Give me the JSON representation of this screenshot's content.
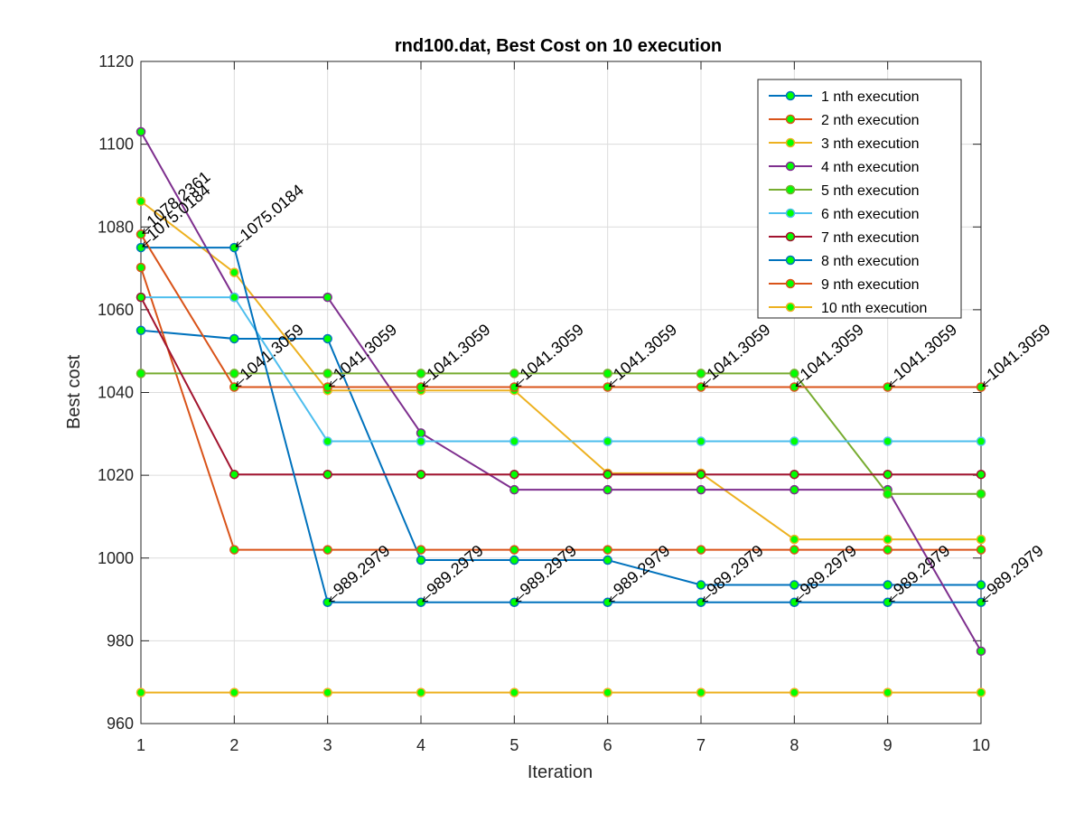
{
  "chart_data": {
    "type": "line",
    "title": "rnd100.dat, Best Cost on 10 execution",
    "xlabel": "Iteration",
    "ylabel": "Best cost",
    "xlim": [
      1,
      10
    ],
    "ylim": [
      960,
      1120
    ],
    "xticks": [
      1,
      2,
      3,
      4,
      5,
      6,
      7,
      8,
      9,
      10
    ],
    "yticks": [
      960,
      980,
      1000,
      1020,
      1040,
      1060,
      1080,
      1100,
      1120
    ],
    "grid": true,
    "legend_position": "top-right",
    "marker_fill": "#00ff00",
    "x": [
      1,
      2,
      3,
      4,
      5,
      6,
      7,
      8,
      9,
      10
    ],
    "series": [
      {
        "name": "1 nth execution",
        "color": "#0072BD",
        "values": [
          1055,
          1053,
          1053,
          999.5,
          999.5,
          999.5,
          993.5,
          993.5,
          993.5,
          993.5
        ]
      },
      {
        "name": "2 nth execution",
        "color": "#D95319",
        "values": [
          1070.2,
          1002,
          1002,
          1002,
          1002,
          1002,
          1002,
          1002,
          1002,
          1002
        ]
      },
      {
        "name": "3 nth execution",
        "color": "#EDB120",
        "values": [
          1086.2,
          1069,
          1040.5,
          1040.5,
          1040.5,
          1020.5,
          1020.5,
          1004.5,
          1004.5,
          1004.5
        ]
      },
      {
        "name": "4 nth execution",
        "color": "#7E2F8E",
        "values": [
          1103,
          1063,
          1063,
          1030.2,
          1016.5,
          1016.5,
          1016.5,
          1016.5,
          1016.5,
          977.5
        ]
      },
      {
        "name": "5 nth execution",
        "color": "#77AC30",
        "values": [
          1044.6,
          1044.6,
          1044.6,
          1044.6,
          1044.6,
          1044.6,
          1044.6,
          1044.6,
          1015.5,
          1015.5
        ]
      },
      {
        "name": "6 nth execution",
        "color": "#4DBEEE",
        "values": [
          1063,
          1063,
          1028.2,
          1028.2,
          1028.2,
          1028.2,
          1028.2,
          1028.2,
          1028.2,
          1028.2
        ]
      },
      {
        "name": "7 nth execution",
        "color": "#A2142F",
        "values": [
          1063,
          1020.2,
          1020.2,
          1020.2,
          1020.2,
          1020.2,
          1020.2,
          1020.2,
          1020.2,
          1020.2
        ]
      },
      {
        "name": "8 nth execution",
        "color": "#0072BD",
        "values": [
          1075.0184,
          1075.0184,
          989.2979,
          989.2979,
          989.2979,
          989.2979,
          989.2979,
          989.2979,
          989.2979,
          989.2979
        ]
      },
      {
        "name": "9 nth execution",
        "color": "#D95319",
        "values": [
          1078.2361,
          1041.3059,
          1041.3059,
          1041.3059,
          1041.3059,
          1041.3059,
          1041.3059,
          1041.3059,
          1041.3059,
          1041.3059
        ]
      },
      {
        "name": "10 nth execution",
        "color": "#EDB120",
        "values": [
          967.5,
          967.5,
          967.5,
          967.5,
          967.5,
          967.5,
          967.5,
          967.5,
          967.5,
          967.5
        ]
      }
    ],
    "annotations": [
      {
        "x": 1,
        "y": 1078.2361,
        "text": "1078.2361"
      },
      {
        "x": 1,
        "y": 1075.0184,
        "text": "1075.0184"
      },
      {
        "x": 2,
        "y": 1075.0184,
        "text": "1075.0184"
      },
      {
        "x": 2,
        "y": 1041.3059,
        "text": "1041.3059"
      },
      {
        "x": 3,
        "y": 1041.3059,
        "text": "1041.3059"
      },
      {
        "x": 4,
        "y": 1041.3059,
        "text": "1041.3059"
      },
      {
        "x": 5,
        "y": 1041.3059,
        "text": "1041.3059"
      },
      {
        "x": 6,
        "y": 1041.3059,
        "text": "1041.3059"
      },
      {
        "x": 7,
        "y": 1041.3059,
        "text": "1041.3059"
      },
      {
        "x": 8,
        "y": 1041.3059,
        "text": "1041.3059"
      },
      {
        "x": 9,
        "y": 1041.3059,
        "text": "1041.3059"
      },
      {
        "x": 10,
        "y": 1041.3059,
        "text": "1041.3059"
      },
      {
        "x": 3,
        "y": 989.2979,
        "text": "989.2979"
      },
      {
        "x": 4,
        "y": 989.2979,
        "text": "989.2979"
      },
      {
        "x": 5,
        "y": 989.2979,
        "text": "989.2979"
      },
      {
        "x": 6,
        "y": 989.2979,
        "text": "989.2979"
      },
      {
        "x": 7,
        "y": 989.2979,
        "text": "989.2979"
      },
      {
        "x": 8,
        "y": 989.2979,
        "text": "989.2979"
      },
      {
        "x": 9,
        "y": 989.2979,
        "text": "989.2979"
      },
      {
        "x": 10,
        "y": 989.2979,
        "text": "989.2979"
      }
    ]
  }
}
